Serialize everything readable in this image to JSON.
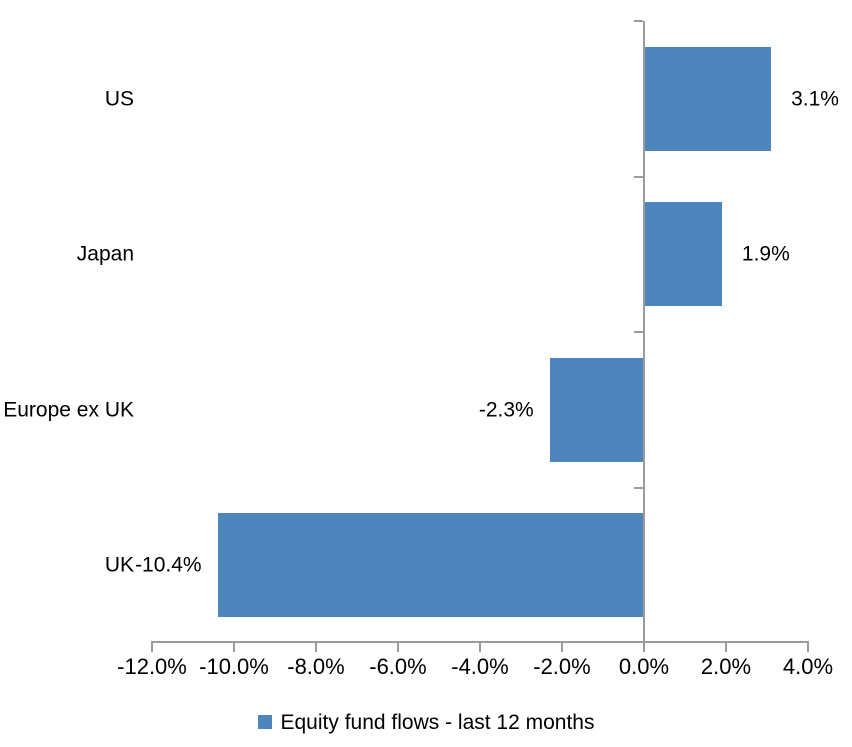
{
  "chart_data": {
    "type": "bar",
    "orientation": "horizontal",
    "title": "",
    "categories": [
      "US",
      "Japan",
      "Europe ex UK",
      "UK"
    ],
    "series": [
      {
        "name": "Equity fund flows - last 12 months",
        "values": [
          3.1,
          1.9,
          -2.3,
          -10.4
        ],
        "data_labels": [
          "3.1%",
          "1.9%",
          "-2.3%",
          "-10.4%"
        ]
      }
    ],
    "xlabel": "",
    "ylabel": "",
    "xlim": [
      -12,
      4
    ],
    "x_tick_step": 2,
    "x_tick_labels": [
      "-12.0%",
      "-10.0%",
      "-8.0%",
      "-6.0%",
      "-4.0%",
      "-2.0%",
      "0.0%",
      "2.0%",
      "4.0%"
    ],
    "grid": false,
    "legend_position": "bottom",
    "colors": {
      "bar": "#4e85bd",
      "axis": "#9b9b9b",
      "text": "#000000",
      "background": "#ffffff"
    }
  },
  "legend": {
    "label": "Equity fund flows - last 12 months"
  }
}
